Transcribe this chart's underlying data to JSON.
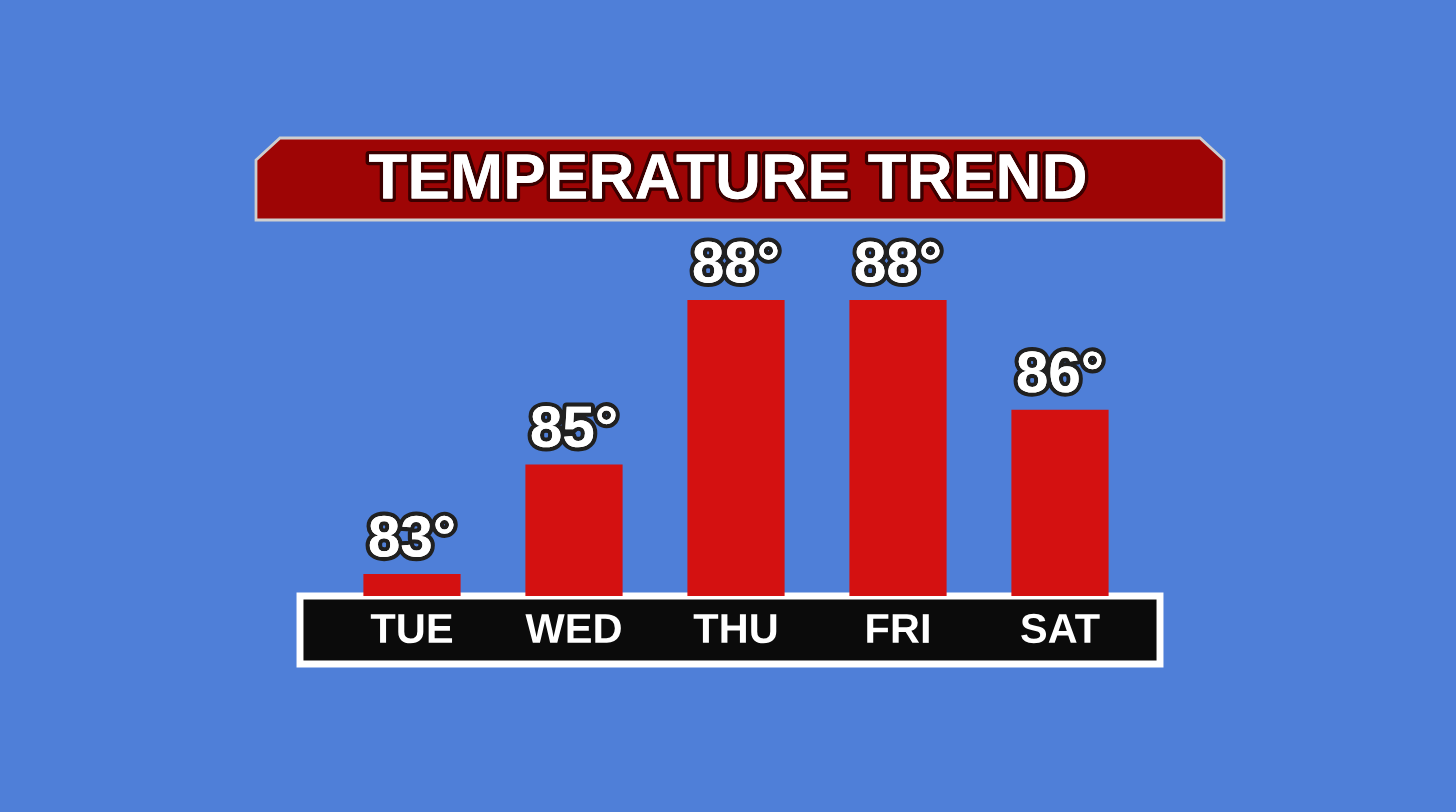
{
  "chart_data": {
    "type": "bar",
    "title": "TEMPERATURE TREND",
    "categories": [
      "TUE",
      "WED",
      "THU",
      "FRI",
      "SAT"
    ],
    "values": [
      83,
      85,
      88,
      88,
      86
    ],
    "value_labels": [
      "83°",
      "85°",
      "88°",
      "88°",
      "86°"
    ],
    "color": "#d41111",
    "ylim": [
      82.6,
      88
    ],
    "tick_labels": "x"
  }
}
